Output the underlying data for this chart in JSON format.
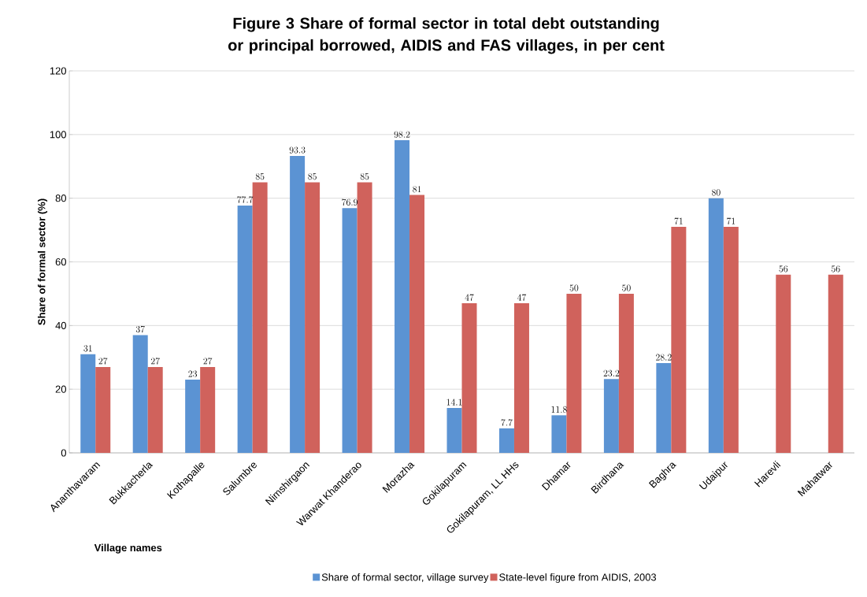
{
  "chart_data": {
    "type": "bar",
    "title": "Figure 3 Share of formal sector in total debt outstanding or principal borrowed, AIDIS and FAS villages, in per cent",
    "xlabel": "Village names",
    "ylabel": "Share of formal sector (%)",
    "categories": [
      "Ananthavaram",
      "Bukkacherla",
      "Kothapalle",
      "Salumbre",
      "Nimshirgaon",
      "Warwat Khanderao",
      "Morazha",
      "Gokilapuram",
      "Gokilapuram, LL HHs",
      "Dhamar",
      "Birdhana",
      "Baghra",
      "Udaipur",
      "Harevli",
      "Mahatwar"
    ],
    "series": [
      {
        "name": "Share of formal sector, village survey",
        "color": "#5b93d3",
        "values": [
          31,
          37,
          23,
          77.7,
          93.3,
          76.9,
          98.2,
          14.1,
          7.7,
          11.8,
          23.2,
          28.2,
          80,
          null,
          null
        ]
      },
      {
        "name": "State-level figure from AIDIS, 2003",
        "color": "#d0625c",
        "values": [
          27,
          27,
          27,
          85,
          85,
          85,
          81,
          47,
          47,
          50,
          50,
          71,
          71,
          56,
          56
        ]
      }
    ],
    "ylim": [
      0,
      120
    ],
    "yticks": [
      0,
      20,
      40,
      60,
      80,
      100,
      120
    ],
    "grid": "y",
    "legend": "bottom",
    "data_labels": true
  }
}
